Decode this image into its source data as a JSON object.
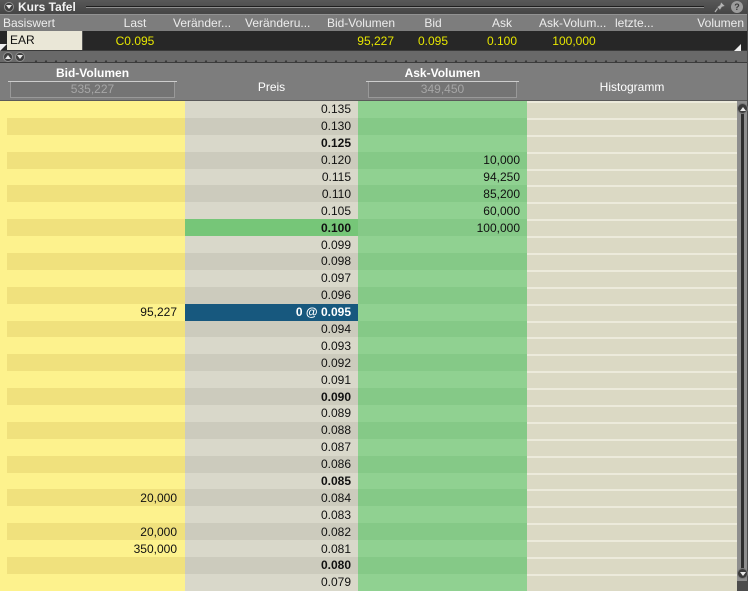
{
  "title_bar": {
    "title": "Kurs Tafel",
    "icons": [
      "collapse-arrow-icon",
      "pin-icon",
      "help-icon"
    ]
  },
  "quote_panel": {
    "columns": [
      {
        "label": "Basiswert",
        "value": "EAR"
      },
      {
        "label": "Last",
        "value": "C0.095"
      },
      {
        "label": "Veränder...",
        "value": ""
      },
      {
        "label": "Veränderu...",
        "value": ""
      },
      {
        "label": "Bid-Volumen",
        "value": "95,227"
      },
      {
        "label": "Bid",
        "value": "0.095"
      },
      {
        "label": "Ask",
        "value": "0.100"
      },
      {
        "label": "Ask-Volum...",
        "value": "100,000"
      },
      {
        "label": "letzte...",
        "value": ""
      },
      {
        "label": "Volumen",
        "value": ""
      }
    ]
  },
  "ladder": {
    "headers": {
      "bid": "Bid-Volumen",
      "bid_total": "535,227",
      "price": "Preis",
      "ask": "Ask-Volumen",
      "ask_total": "349,450",
      "histogram": "Histogramm"
    },
    "rows": [
      {
        "price": "0.135",
        "bid": "",
        "ask": ""
      },
      {
        "price": "0.130",
        "bid": "",
        "ask": ""
      },
      {
        "price": "0.125",
        "bid": "",
        "ask": "",
        "bold": true
      },
      {
        "price": "0.120",
        "bid": "",
        "ask": "10,000"
      },
      {
        "price": "0.115",
        "bid": "",
        "ask": "94,250"
      },
      {
        "price": "0.110",
        "bid": "",
        "ask": "85,200"
      },
      {
        "price": "0.105",
        "bid": "",
        "ask": "60,000"
      },
      {
        "price": "0.100",
        "bid": "",
        "ask": "100,000",
        "bold": true,
        "green": true
      },
      {
        "price": "0.099",
        "bid": "",
        "ask": ""
      },
      {
        "price": "0.098",
        "bid": "",
        "ask": ""
      },
      {
        "price": "0.097",
        "bid": "",
        "ask": ""
      },
      {
        "price": "0.096",
        "bid": "",
        "ask": ""
      },
      {
        "price": "0.095",
        "bid": "95,227",
        "ask": "",
        "hl": true,
        "price_label": "0 @ 0.095"
      },
      {
        "price": "0.094",
        "bid": "",
        "ask": ""
      },
      {
        "price": "0.093",
        "bid": "",
        "ask": ""
      },
      {
        "price": "0.092",
        "bid": "",
        "ask": ""
      },
      {
        "price": "0.091",
        "bid": "",
        "ask": ""
      },
      {
        "price": "0.090",
        "bid": "",
        "ask": "",
        "bold": true
      },
      {
        "price": "0.089",
        "bid": "",
        "ask": ""
      },
      {
        "price": "0.088",
        "bid": "",
        "ask": ""
      },
      {
        "price": "0.087",
        "bid": "",
        "ask": ""
      },
      {
        "price": "0.086",
        "bid": "",
        "ask": ""
      },
      {
        "price": "0.085",
        "bid": "",
        "ask": "",
        "bold": true
      },
      {
        "price": "0.084",
        "bid": "20,000",
        "ask": ""
      },
      {
        "price": "0.083",
        "bid": "",
        "ask": ""
      },
      {
        "price": "0.082",
        "bid": "20,000",
        "ask": ""
      },
      {
        "price": "0.081",
        "bid": "350,000",
        "ask": ""
      },
      {
        "price": "0.080",
        "bid": "",
        "ask": "",
        "bold": true
      },
      {
        "price": "0.079",
        "bid": "",
        "ask": ""
      }
    ]
  },
  "colors": {
    "highlight_blue": "#17587e",
    "price_inside_green": "#76c678",
    "bid_yellow_light": "#fdf28d",
    "bid_yellow_dark": "#f0e17d",
    "ask_green_light": "#90d191",
    "ask_green_dark": "#85c987",
    "price_gray_light": "#d9d8ca",
    "price_gray_dark": "#cccbbd",
    "quote_value_yellow": "#e6e600",
    "header_gray": "#7d7d7d"
  }
}
